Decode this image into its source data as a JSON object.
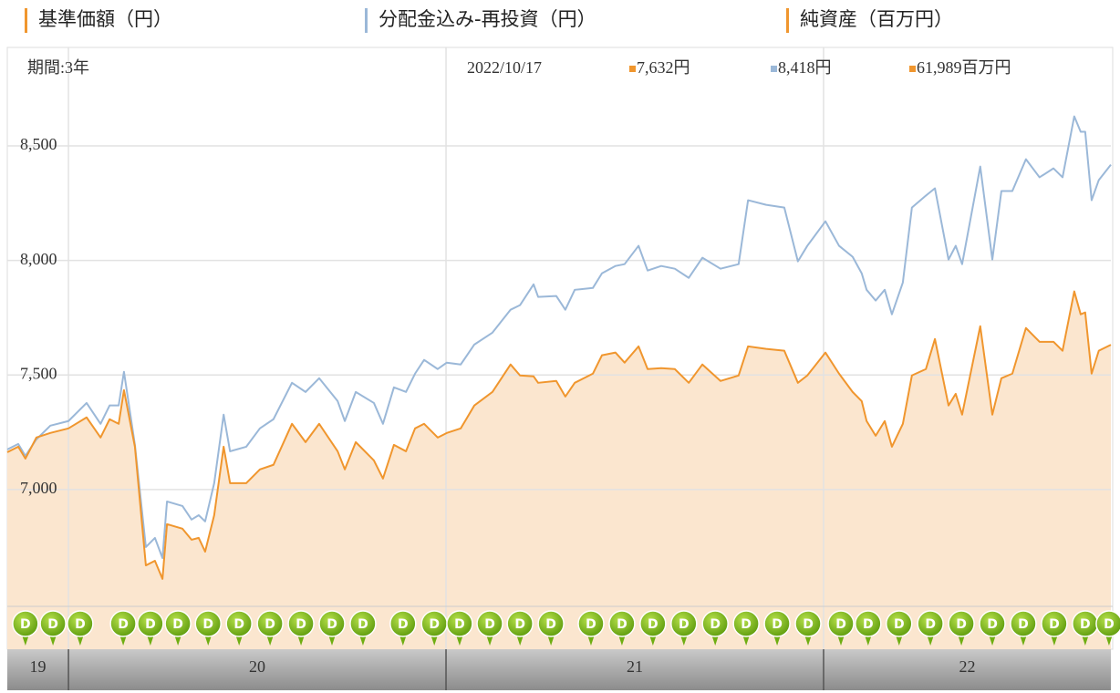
{
  "chart_data": {
    "type": "line",
    "period_label": "期間:3年",
    "readout": {
      "date": "2022/10/17",
      "items": [
        {
          "label": "7,632円",
          "color": "#f0962e"
        },
        {
          "label": "8,418円",
          "color": "#9bb8d8"
        },
        {
          "label": "61,989百万円",
          "color": "#f0962e"
        }
      ]
    },
    "extra_legend": {
      "name": "純資産（百万円）",
      "color": "#f0962e"
    },
    "x": [
      2019.838,
      2019.867,
      2019.886,
      2019.915,
      2019.952,
      2020.0,
      2020.048,
      2020.085,
      2020.109,
      2020.133,
      2020.147,
      2020.176,
      2020.205,
      2020.229,
      2020.249,
      2020.261,
      2020.302,
      2020.326,
      2020.345,
      2020.362,
      2020.386,
      2020.411,
      2020.428,
      2020.471,
      2020.507,
      2020.543,
      2020.592,
      2020.628,
      2020.664,
      2020.713,
      2020.732,
      2020.761,
      2020.809,
      2020.833,
      2020.862,
      2020.894,
      2020.918,
      2020.942,
      2020.978,
      2021.002,
      2021.039,
      2021.075,
      2021.123,
      2021.171,
      2021.196,
      2021.232,
      2021.244,
      2021.292,
      2021.316,
      2021.341,
      2021.389,
      2021.413,
      2021.449,
      2021.473,
      2021.51,
      2021.534,
      2021.57,
      2021.606,
      2021.643,
      2021.679,
      2021.727,
      2021.775,
      2021.8,
      2021.848,
      2021.896,
      2021.932,
      2021.957,
      2022.005,
      2022.041,
      2022.077,
      2022.101,
      2022.114,
      2022.138,
      2022.162,
      2022.181,
      2022.21,
      2022.234,
      2022.271,
      2022.295,
      2022.331,
      2022.35,
      2022.367,
      2022.415,
      2022.447,
      2022.471,
      2022.5,
      2022.536,
      2022.572,
      2022.609,
      2022.633,
      2022.664,
      2022.681,
      2022.693,
      2022.71,
      2022.729,
      2022.761
    ],
    "series": [
      {
        "name": "基準価額（円）",
        "color": "#f0962e",
        "fill": "#fbe6cf",
        "values": [
          7163,
          7187,
          7135,
          7227,
          7247,
          7267,
          7315,
          7227,
          7307,
          7287,
          7434,
          7187,
          6669,
          6689,
          6610,
          6849,
          6829,
          6781,
          6789,
          6729,
          6888,
          7187,
          7028,
          7028,
          7088,
          7108,
          7287,
          7207,
          7287,
          7167,
          7088,
          7207,
          7127,
          7048,
          7195,
          7167,
          7267,
          7287,
          7227,
          7247,
          7267,
          7367,
          7426,
          7546,
          7498,
          7494,
          7466,
          7474,
          7406,
          7466,
          7506,
          7586,
          7598,
          7554,
          7625,
          7526,
          7530,
          7526,
          7466,
          7546,
          7474,
          7498,
          7625,
          7614,
          7606,
          7466,
          7498,
          7598,
          7506,
          7426,
          7386,
          7299,
          7235,
          7299,
          7187,
          7287,
          7498,
          7526,
          7657,
          7367,
          7418,
          7327,
          7713,
          7327,
          7486,
          7506,
          7705,
          7645,
          7645,
          7606,
          7865,
          7765,
          7773,
          7506,
          7606,
          7632
        ]
      },
      {
        "name": "分配金込み-再投資（円）",
        "color": "#9bb8d8",
        "values": [
          7175,
          7199,
          7147,
          7219,
          7279,
          7299,
          7378,
          7287,
          7367,
          7367,
          7514,
          7195,
          6749,
          6789,
          6701,
          6948,
          6928,
          6869,
          6888,
          6861,
          7028,
          7327,
          7167,
          7187,
          7267,
          7307,
          7466,
          7426,
          7486,
          7386,
          7299,
          7426,
          7378,
          7287,
          7446,
          7426,
          7506,
          7566,
          7526,
          7554,
          7546,
          7633,
          7685,
          7785,
          7805,
          7896,
          7841,
          7845,
          7785,
          7872,
          7880,
          7944,
          7976,
          7984,
          8064,
          7956,
          7976,
          7964,
          7924,
          8012,
          7964,
          7984,
          8263,
          8243,
          8231,
          7996,
          8064,
          8171,
          8064,
          8016,
          7944,
          7872,
          7825,
          7872,
          7765,
          7904,
          8231,
          8283,
          8315,
          8004,
          8064,
          7984,
          8410,
          8004,
          8303,
          8303,
          8442,
          8363,
          8402,
          8363,
          8629,
          8562,
          8562,
          8263,
          8351,
          8418
        ]
      }
    ],
    "distribution_marks": {
      "label": "D",
      "color": "#6fae12",
      "x": [
        2019.886,
        2019.959,
        2020.031,
        2020.145,
        2020.217,
        2020.29,
        2020.37,
        2020.452,
        2020.534,
        2020.616,
        2020.698,
        2020.78,
        2020.886,
        2020.969,
        2021.036,
        2021.116,
        2021.196,
        2021.278,
        2021.384,
        2021.466,
        2021.548,
        2021.63,
        2021.713,
        2021.795,
        2021.877,
        2021.959,
        2022.046,
        2022.118,
        2022.2,
        2022.283,
        2022.365,
        2022.447,
        2022.529,
        2022.611,
        2022.693,
        2022.756
      ]
    },
    "xlim": [
      2019.838,
      2022.761
    ],
    "xticks": [
      {
        "value": 2019,
        "label": "19"
      },
      {
        "value": 2020,
        "label": "20"
      },
      {
        "value": 2021,
        "label": "21"
      },
      {
        "value": 2022,
        "label": "22"
      }
    ],
    "ylim": [
      6303,
      8930
    ],
    "yticks": [
      {
        "value": 7000,
        "label": "7,000"
      },
      {
        "value": 7500,
        "label": "7,500"
      },
      {
        "value": 8000,
        "label": "8,000"
      },
      {
        "value": 8500,
        "label": "8,500"
      }
    ],
    "grid": true
  }
}
